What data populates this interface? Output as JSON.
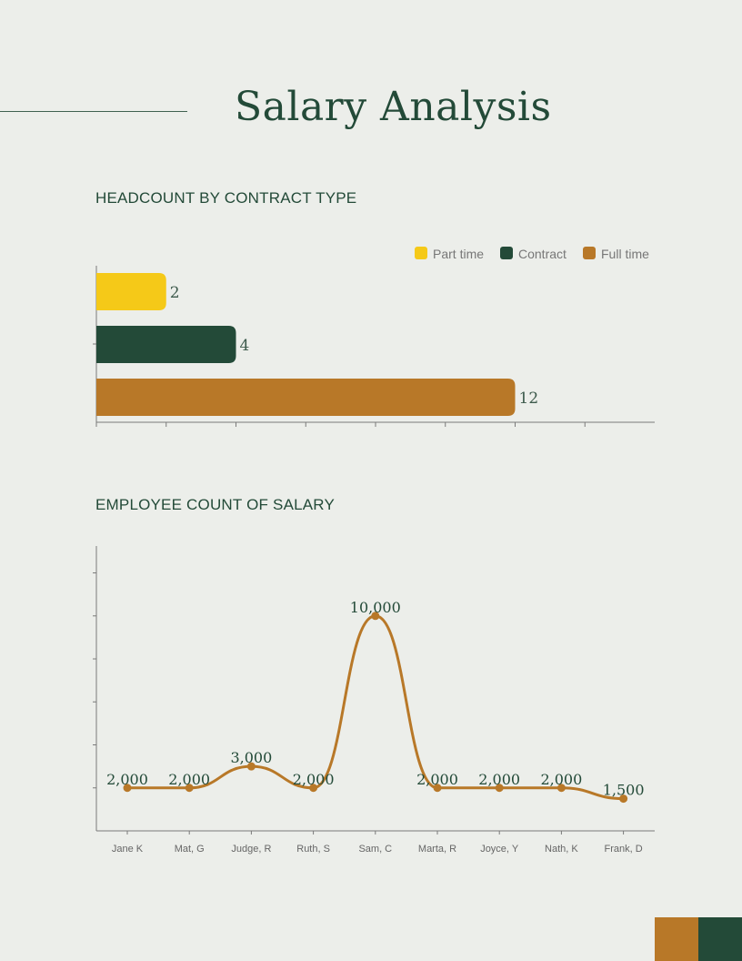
{
  "title": "Salary Analysis",
  "colors": {
    "background": "#eceeea",
    "green": "#234a38",
    "yellow": "#f5c918",
    "brown": "#b87828",
    "axis": "#7a7a7a"
  },
  "chart_data": [
    {
      "type": "bar",
      "orientation": "horizontal",
      "title": "HEADCOUNT BY CONTRACT TYPE",
      "categories": [
        "Part time",
        "Contract",
        "Full time"
      ],
      "values": [
        2,
        4,
        12
      ],
      "value_labels": [
        "2",
        "4",
        "12"
      ],
      "colors": [
        "#f5c918",
        "#234a38",
        "#b87828"
      ],
      "legend": {
        "placement": "top-right",
        "entries": [
          "Part time",
          "Contract",
          "Full time"
        ]
      },
      "xlim": [
        0,
        16
      ],
      "tick_step": 2,
      "tick_labels_shown": false,
      "grid": false
    },
    {
      "type": "line",
      "smooth": true,
      "title": "EMPLOYEE COUNT OF SALARY",
      "categories": [
        "Jane K",
        "Mat, G",
        "Judge, R",
        "Ruth, S",
        "Sam, C",
        "Marta, R",
        "Joyce, Y",
        "Nath, K",
        "Frank, D"
      ],
      "values": [
        2000,
        2000,
        3000,
        2000,
        10000,
        2000,
        2000,
        2000,
        1500
      ],
      "value_labels": [
        "2,000",
        "2,000",
        "3,000",
        "2,000",
        "10,000",
        "2,000",
        "2,000",
        "2,000",
        "1,500"
      ],
      "color": "#b87828",
      "ylim": [
        0,
        13250
      ],
      "tick_step": 2000,
      "tick_labels_shown": false,
      "grid": false
    }
  ]
}
